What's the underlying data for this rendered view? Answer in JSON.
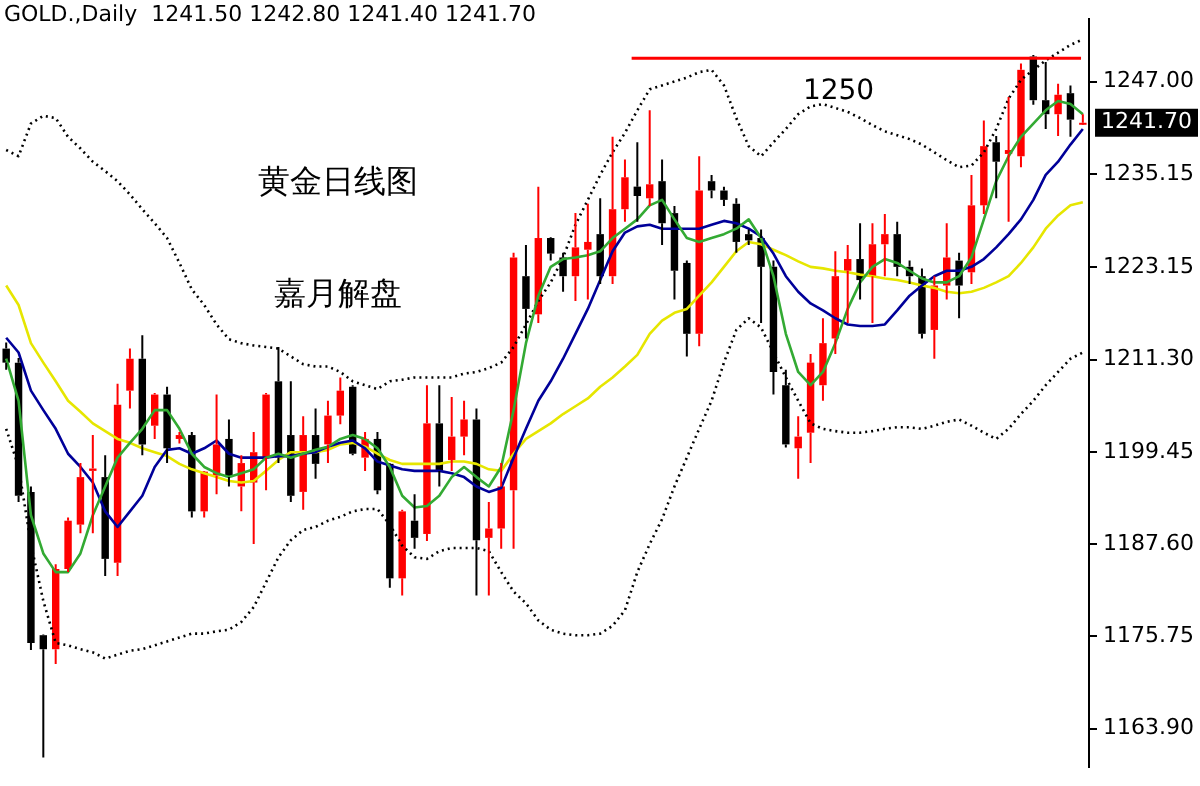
{
  "chart_data": {
    "type": "candlestick",
    "title": "GOLD.,Daily  1241.50 1242.80 1241.40 1241.70",
    "categories": [
      null,
      null,
      null,
      null,
      null,
      null,
      null,
      null,
      null,
      null,
      null,
      null,
      null,
      null,
      null,
      null,
      null,
      null,
      null,
      null,
      null,
      null,
      null,
      null,
      null,
      null,
      null,
      null,
      null,
      null,
      null,
      null,
      null,
      null,
      null,
      null,
      null,
      null,
      null,
      null,
      null,
      null,
      null,
      null,
      null,
      null,
      null,
      null,
      null,
      null,
      null,
      null,
      null,
      null,
      null,
      null,
      null,
      null,
      null,
      null,
      null,
      null,
      null,
      null,
      null,
      null,
      null,
      null,
      null,
      null,
      null,
      null,
      null,
      null,
      null,
      null,
      null,
      null,
      null,
      null,
      null,
      null,
      null,
      null,
      null,
      null,
      null,
      null
    ],
    "series": [
      {
        "ohlc": [
          [
            1212.7,
            1213.5,
            1210,
            1210.9
          ],
          [
            1210.9,
            1211.5,
            1193,
            1193.8
          ],
          [
            1194.3,
            1195,
            1174,
            1174.9
          ],
          [
            1175.9,
            1176,
            1160.2,
            1174.1
          ],
          [
            1174.1,
            1185,
            1172.2,
            1184.4
          ],
          [
            1184.4,
            1191,
            1184,
            1190.6
          ],
          [
            1190.1,
            1198,
            1189,
            1196.2
          ],
          [
            1197,
            1201.6,
            1189,
            1197.3
          ],
          [
            1196.2,
            1199,
            1183.5,
            1185.7
          ],
          [
            1185.2,
            1208.2,
            1183.5,
            1205.5
          ],
          [
            1207.3,
            1212.7,
            1205,
            1211.4
          ],
          [
            1211.4,
            1214.4,
            1199,
            1200.4
          ],
          [
            1202.8,
            1207,
            1201.1,
            1206.8
          ],
          [
            1206.8,
            1207.8,
            1198,
            1199.9
          ],
          [
            1201.1,
            1202,
            1200.5,
            1201.6
          ],
          [
            1201.6,
            1202,
            1191,
            1191.8
          ],
          [
            1191.8,
            1197,
            1191,
            1196.9
          ],
          [
            1196.4,
            1206.8,
            1194,
            1200.4
          ],
          [
            1201.1,
            1203.6,
            1195,
            1196.2
          ],
          [
            1195,
            1199,
            1191.8,
            1198
          ],
          [
            1195.5,
            1202,
            1187.6,
            1199.4
          ],
          [
            1198.7,
            1207,
            1194.5,
            1206.8
          ],
          [
            1208.5,
            1212.9,
            1198,
            1198.7
          ],
          [
            1201.6,
            1208.5,
            1193,
            1193.8
          ],
          [
            1194.3,
            1204,
            1192,
            1201.6
          ],
          [
            1201.6,
            1205,
            1196,
            1197.9
          ],
          [
            1200.4,
            1206,
            1198,
            1204.1
          ],
          [
            1204.1,
            1209,
            1203,
            1207.3
          ],
          [
            1207.8,
            1208,
            1199,
            1199.2
          ],
          [
            1198.7,
            1202,
            1197,
            1201.1
          ],
          [
            1201.1,
            1202,
            1194,
            1194.5
          ],
          [
            1197.9,
            1198,
            1182,
            1183.2
          ],
          [
            1183.2,
            1192,
            1181,
            1191.8
          ],
          [
            1190.6,
            1194,
            1187,
            1188.4
          ],
          [
            1188.9,
            1208,
            1188,
            1203.1
          ],
          [
            1203.1,
            1208,
            1195,
            1197
          ],
          [
            1198.4,
            1206.5,
            1197,
            1201.4
          ],
          [
            1201.4,
            1206,
            1199,
            1203.6
          ],
          [
            1203.6,
            1205,
            1181,
            1188.1
          ],
          [
            1188.4,
            1193,
            1181,
            1189.6
          ],
          [
            1189.6,
            1198,
            1187,
            1195
          ],
          [
            1194.5,
            1225,
            1187,
            1224.4
          ],
          [
            1222,
            1226,
            1214,
            1217.8
          ],
          [
            1217.1,
            1233.5,
            1216,
            1226.9
          ],
          [
            1226.9,
            1227,
            1224,
            1224.9
          ],
          [
            1224.4,
            1225,
            1220,
            1222
          ],
          [
            1222,
            1230.1,
            1218.8,
            1225.7
          ],
          [
            1225.4,
            1231.3,
            1219,
            1226.4
          ],
          [
            1227.4,
            1232,
            1221,
            1222
          ],
          [
            1222,
            1239.9,
            1221,
            1230.6
          ],
          [
            1230.6,
            1237,
            1229,
            1234.7
          ],
          [
            1233.5,
            1239.2,
            1229,
            1232.3
          ],
          [
            1232,
            1243.3,
            1231,
            1233.8
          ],
          [
            1234.2,
            1237,
            1226,
            1228.8
          ],
          [
            1230.1,
            1231,
            1219,
            1222.7
          ],
          [
            1223.7,
            1224,
            1211.7,
            1214.6
          ],
          [
            1214.6,
            1237.4,
            1213,
            1233
          ],
          [
            1234.2,
            1235,
            1232,
            1233
          ],
          [
            1233,
            1233.5,
            1231,
            1231.8
          ],
          [
            1231.3,
            1232,
            1225,
            1226.4
          ],
          [
            1227.4,
            1228,
            1226,
            1226.6
          ],
          [
            1226.9,
            1228,
            1216,
            1223.2
          ],
          [
            1223.2,
            1224,
            1206.8,
            1209.7
          ],
          [
            1208,
            1210,
            1200,
            1200.4
          ],
          [
            1199.9,
            1204,
            1196,
            1201.4
          ],
          [
            1201.9,
            1212,
            1198,
            1210.9
          ],
          [
            1208,
            1216.6,
            1206,
            1213.4
          ],
          [
            1214,
            1225.2,
            1212,
            1222
          ],
          [
            1222.7,
            1226,
            1216,
            1224.2
          ],
          [
            1224.2,
            1228.8,
            1219,
            1221.5
          ],
          [
            1222,
            1228.8,
            1216,
            1226.1
          ],
          [
            1226.1,
            1230,
            1222,
            1227.4
          ],
          [
            1227.4,
            1229,
            1222,
            1223.2
          ],
          [
            1223.2,
            1224,
            1221,
            1222
          ],
          [
            1222,
            1223,
            1214,
            1214.6
          ],
          [
            1215.1,
            1222,
            1211.4,
            1220.8
          ],
          [
            1220.8,
            1228.8,
            1219,
            1224.4
          ],
          [
            1224,
            1225,
            1216.6,
            1220.8
          ],
          [
            1222.5,
            1235,
            1221,
            1231.1
          ],
          [
            1231.1,
            1242,
            1230,
            1238.7
          ],
          [
            1239.2,
            1240,
            1232,
            1236.7
          ],
          [
            1237.7,
            1245,
            1229,
            1238.2
          ],
          [
            1237.4,
            1249.3,
            1236,
            1248.5
          ],
          [
            1250.2,
            1250.4,
            1244,
            1244.6
          ],
          [
            1244.6,
            1249.5,
            1240.9,
            1242.8
          ],
          [
            1242.8,
            1246.7,
            1240,
            1245.3
          ],
          [
            1245.5,
            1246.5,
            1239.9,
            1242.1
          ],
          [
            1241.5,
            1242.8,
            1241.4,
            1241.7
          ]
        ],
        "colors": [
          "#000000",
          "#000000",
          "#000000",
          "#000000",
          "#ff0000",
          "#ff0000",
          "#ff0000",
          "#ff0000",
          "#000000",
          "#ff0000",
          "#ff0000",
          "#000000",
          "#ff0000",
          "#000000",
          "#ff0000",
          "#000000",
          "#ff0000",
          "#ff0000",
          "#000000",
          "#ff0000",
          "#ff0000",
          "#ff0000",
          "#000000",
          "#000000",
          "#ff0000",
          "#000000",
          "#ff0000",
          "#ff0000",
          "#000000",
          "#ff0000",
          "#000000",
          "#000000",
          "#ff0000",
          "#000000",
          "#ff0000",
          "#000000",
          "#ff0000",
          "#ff0000",
          "#000000",
          "#ff0000",
          "#ff0000",
          "#ff0000",
          "#000000",
          "#ff0000",
          "#000000",
          "#000000",
          "#ff0000",
          "#ff0000",
          "#000000",
          "#ff0000",
          "#ff0000",
          "#000000",
          "#ff0000",
          "#000000",
          "#000000",
          "#000000",
          "#ff0000",
          "#000000",
          "#000000",
          "#000000",
          "#000000",
          "#000000",
          "#000000",
          "#000000",
          "#ff0000",
          "#ff0000",
          "#ff0000",
          "#ff0000",
          "#ff0000",
          "#000000",
          "#ff0000",
          "#ff0000",
          "#000000",
          "#000000",
          "#000000",
          "#ff0000",
          "#ff0000",
          "#000000",
          "#ff0000",
          "#ff0000",
          "#000000",
          "#ff0000",
          "#ff0000",
          "#000000",
          "#000000",
          "#ff0000",
          "#000000",
          "#ff0000"
        ]
      },
      {
        "type": "line",
        "color": "#33aa33",
        "values": [
          1211.4,
          1206.0,
          1191.3,
          1186.4,
          1184.0,
          1184.0,
          1186.4,
          1191.3,
          1195.0,
          1198.7,
          1200.6,
          1202.4,
          1204.8,
          1204.8,
          1202.4,
          1199.2,
          1197.5,
          1196.7,
          1196.2,
          1196.7,
          1197.2,
          1198.7,
          1199.2,
          1198.7,
          1199.2,
          1199.7,
          1200.1,
          1201.1,
          1201.6,
          1201.1,
          1199.9,
          1197.5,
          1193.8,
          1192.3,
          1192.5,
          1193.8,
          1196.2,
          1197.5,
          1196.2,
          1195.0,
          1197.5,
          1204.8,
          1213.4,
          1219.5,
          1223.2,
          1224.2,
          1224.4,
          1224.7,
          1225.2,
          1226.9,
          1228.1,
          1229.3,
          1231.1,
          1231.8,
          1229.3,
          1226.9,
          1226.4,
          1226.9,
          1227.4,
          1228.1,
          1229.3,
          1226.9,
          1222.0,
          1214.6,
          1209.7,
          1208.0,
          1209.7,
          1213.4,
          1217.8,
          1221.2,
          1223.2,
          1224.2,
          1223.7,
          1222.7,
          1221.7,
          1221.2,
          1221.2,
          1222.0,
          1224.4,
          1229.3,
          1234.2,
          1237.4,
          1239.9,
          1241.6,
          1243.3,
          1244.5,
          1244.1,
          1242.8
        ]
      },
      {
        "type": "line",
        "color": "#000099",
        "values": [
          1214.1,
          1212.2,
          1207.3,
          1204.8,
          1202.4,
          1199.2,
          1197.5,
          1195.5,
          1191.8,
          1189.8,
          1191.8,
          1193.8,
          1197.5,
          1199.7,
          1199.9,
          1199.2,
          1199.9,
          1200.9,
          1199.2,
          1198.7,
          1198.7,
          1198.7,
          1198.9,
          1198.9,
          1199.2,
          1199.4,
          1200.1,
          1200.6,
          1200.9,
          1199.9,
          1198.2,
          1197.7,
          1197.2,
          1197.0,
          1197.0,
          1197.0,
          1196.7,
          1196.2,
          1195.0,
          1194.3,
          1194.8,
          1198.7,
          1202.4,
          1206.0,
          1208.5,
          1211.4,
          1214.6,
          1217.8,
          1221.5,
          1225.2,
          1227.6,
          1228.4,
          1228.6,
          1228.1,
          1228.1,
          1228.1,
          1228.1,
          1228.6,
          1229.1,
          1228.8,
          1228.1,
          1227.1,
          1224.9,
          1222.0,
          1220.0,
          1218.5,
          1217.6,
          1216.6,
          1215.8,
          1215.6,
          1215.6,
          1215.8,
          1217.6,
          1219.5,
          1220.8,
          1222.0,
          1222.7,
          1222.7,
          1223.2,
          1224.2,
          1225.7,
          1227.4,
          1229.3,
          1231.8,
          1235.0,
          1236.7,
          1238.9,
          1240.9
        ]
      },
      {
        "type": "line",
        "color": "#e6e600",
        "values": [
          1220.8,
          1218.3,
          1213.4,
          1210.9,
          1208.5,
          1206.0,
          1204.6,
          1203.1,
          1202.1,
          1201.1,
          1200.6,
          1199.9,
          1199.4,
          1198.9,
          1197.9,
          1197.2,
          1196.7,
          1196.2,
          1195.7,
          1195.5,
          1195.7,
          1197.0,
          1198.4,
          1199.4,
          1199.4,
          1199.4,
          1199.7,
          1200.4,
          1200.6,
          1200.1,
          1199.2,
          1198.4,
          1197.9,
          1197.9,
          1197.9,
          1197.9,
          1198.2,
          1198.2,
          1197.9,
          1197.2,
          1197.0,
          1199.2,
          1201.1,
          1202.1,
          1203.1,
          1204.3,
          1205.3,
          1206.3,
          1207.8,
          1209.0,
          1210.4,
          1211.9,
          1214.6,
          1216.3,
          1217.3,
          1217.8,
          1219.5,
          1221.2,
          1223.2,
          1225.2,
          1226.4,
          1226.1,
          1225.4,
          1224.7,
          1223.9,
          1223.2,
          1223.0,
          1222.7,
          1222.5,
          1222.2,
          1222.0,
          1221.7,
          1221.5,
          1221.2,
          1220.8,
          1220.5,
          1220.0,
          1219.8,
          1220.0,
          1220.5,
          1221.2,
          1222.0,
          1223.7,
          1225.7,
          1228.1,
          1229.8,
          1231.1,
          1231.5
        ]
      },
      {
        "type": "line",
        "color": "#000000",
        "line_style": "dotted",
        "values": [
          1238.2,
          1237.4,
          1241.6,
          1242.6,
          1242.3,
          1239.9,
          1238.4,
          1236.7,
          1235.5,
          1234.2,
          1232.5,
          1230.6,
          1228.8,
          1226.9,
          1223.7,
          1220.3,
          1218.3,
          1215.8,
          1213.9,
          1213.4,
          1213.1,
          1212.9,
          1212.7,
          1211.7,
          1210.7,
          1210.4,
          1210.4,
          1209.7,
          1208.5,
          1208.0,
          1207.5,
          1208.5,
          1208.7,
          1209.0,
          1209.0,
          1209.0,
          1209.0,
          1209.5,
          1209.7,
          1210.2,
          1210.9,
          1212.9,
          1215.8,
          1218.8,
          1221.2,
          1224.4,
          1228.6,
          1231.8,
          1235.0,
          1237.9,
          1240.4,
          1243.3,
          1246.0,
          1246.5,
          1247.0,
          1247.5,
          1248.2,
          1248.5,
          1246.5,
          1242.3,
          1238.7,
          1237.4,
          1239.2,
          1240.9,
          1242.8,
          1243.8,
          1244.1,
          1243.6,
          1243.1,
          1242.3,
          1241.4,
          1240.6,
          1240.1,
          1239.6,
          1238.9,
          1237.9,
          1236.9,
          1236.0,
          1236.2,
          1237.9,
          1240.9,
          1244.8,
          1247.2,
          1248.5,
          1249.7,
          1250.7,
          1251.7,
          1252.4
        ]
      },
      {
        "type": "line",
        "color": "#000000",
        "line_style": "dotted",
        "values": [
          1202.4,
          1197.5,
          1187.6,
          1180.3,
          1174.9,
          1174.6,
          1174.1,
          1173.7,
          1172.9,
          1173.4,
          1173.9,
          1174.1,
          1174.6,
          1175.1,
          1175.6,
          1176.1,
          1176.1,
          1176.4,
          1176.6,
          1177.6,
          1179.5,
          1182.7,
          1185.9,
          1188.1,
          1189.4,
          1189.8,
          1190.6,
          1191.1,
          1191.8,
          1192.1,
          1192.1,
          1190.1,
          1187.4,
          1185.9,
          1185.7,
          1186.7,
          1187.1,
          1187.1,
          1187.1,
          1186.7,
          1184.0,
          1181.5,
          1180.0,
          1177.8,
          1176.6,
          1176.1,
          1175.9,
          1175.9,
          1176.1,
          1177.1,
          1179.1,
          1184.0,
          1187.6,
          1190.8,
          1195.0,
          1198.7,
          1202.4,
          1206.0,
          1210.9,
          1215.1,
          1216.6,
          1215.4,
          1212.2,
          1209.0,
          1206.0,
          1203.1,
          1202.4,
          1202.1,
          1201.9,
          1201.9,
          1202.1,
          1202.4,
          1202.6,
          1202.6,
          1202.4,
          1202.8,
          1203.3,
          1203.6,
          1202.8,
          1201.9,
          1201.1,
          1202.4,
          1204.3,
          1206.0,
          1208.0,
          1209.7,
          1211.4,
          1212.2
        ]
      }
    ],
    "ylim": [
      1159,
      1255
    ],
    "yticks": [
      {
        "value": 1163.9,
        "label": "1163.90"
      },
      {
        "value": 1175.75,
        "label": "1175.75"
      },
      {
        "value": 1187.6,
        "label": "1187.60"
      },
      {
        "value": 1199.45,
        "label": "1199.45"
      },
      {
        "value": 1211.3,
        "label": "1211.30"
      },
      {
        "value": 1223.15,
        "label": "1223.15"
      },
      {
        "value": 1235.15,
        "label": "1235.15"
      },
      {
        "value": 1247,
        "label": "1247.00"
      }
    ],
    "tick_labels": "y",
    "ref_lines": [
      {
        "axis": "y",
        "value": 1250,
        "label": "1250",
        "color": "#ff0000"
      }
    ],
    "annotations": [
      "黄金日线图",
      "嘉月解盘",
      "1241.70"
    ]
  }
}
